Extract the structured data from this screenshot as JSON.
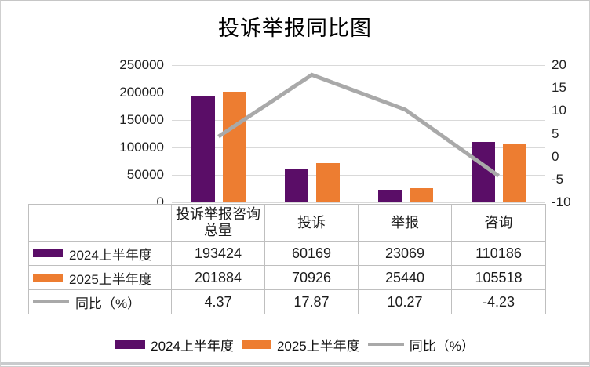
{
  "title": "投诉举报同比图",
  "chart_data": {
    "type": "combo",
    "title": "投诉举报同比图",
    "categories": [
      "投诉举报咨询总量",
      "投诉",
      "举报",
      "咨询"
    ],
    "series": [
      {
        "name": "2024上半年度",
        "type": "bar",
        "color": "#5a0d67",
        "values": [
          193424,
          60169,
          23069,
          110186
        ],
        "display": [
          "193424",
          "60169",
          "23069",
          "110186"
        ]
      },
      {
        "name": "2025上半年度",
        "type": "bar",
        "color": "#ed7d31",
        "values": [
          201884,
          70926,
          25440,
          105518
        ],
        "display": [
          "201884",
          "70926",
          "25440",
          "105518"
        ]
      },
      {
        "name": "同比（%）",
        "type": "line",
        "color": "#a9a9a9",
        "values": [
          4.37,
          17.87,
          10.27,
          -4.23
        ],
        "display": [
          "4.37",
          "17.87",
          "10.27",
          "-4.23"
        ]
      }
    ],
    "left_axis": {
      "min": 0,
      "max": 250000,
      "step": 50000,
      "ticks": [
        "250000",
        "200000",
        "150000",
        "100000",
        "50000",
        "0"
      ]
    },
    "right_axis": {
      "min": -10,
      "max": 20,
      "step": 5,
      "ticks": [
        "20",
        "15",
        "10",
        "5",
        "0",
        "-5",
        "-10"
      ]
    },
    "legend_position": "bottom",
    "grid": true,
    "colors": {
      "gridline": "#d9d9d9",
      "table_border": "#bfbfbf",
      "line_width": 5
    }
  }
}
